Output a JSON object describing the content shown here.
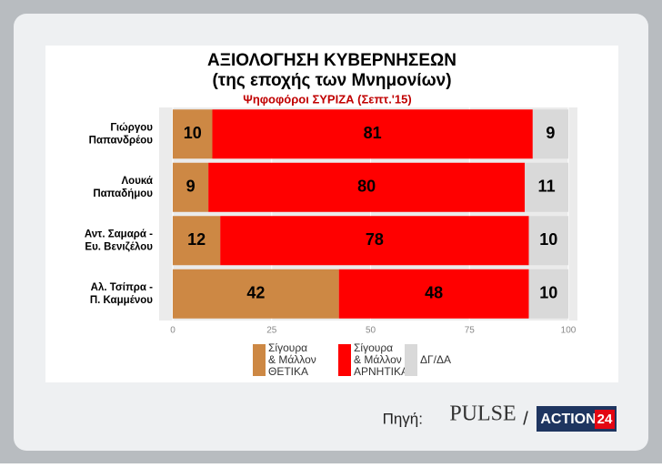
{
  "chart_data": {
    "type": "stacked-barh",
    "title": [
      "ΑΞΙΟΛΟΓΗΣΗ ΚΥΒΕΡΝΗΣΕΩΝ",
      "(της εποχής των Μνημονίων)"
    ],
    "subtitle": "Ψηφοφόροι ΣΥΡΙΖΑ (Σεπτ.'15)",
    "categories": [
      [
        "Γιώργου",
        "Παπανδρέου"
      ],
      [
        "Λουκά",
        "Παπαδήμου"
      ],
      [
        "Αντ. Σαμαρά -",
        "Ευ. Βενιζέλου"
      ],
      [
        "Αλ. Τσίπρα -",
        "Π. Καμμένου"
      ]
    ],
    "series": [
      {
        "name": [
          "Σίγουρα",
          "& Μάλλον",
          "ΘΕΤΙΚΑ"
        ],
        "color": "#cd8844",
        "values": [
          10,
          9,
          12,
          42
        ]
      },
      {
        "name": [
          "Σίγουρα",
          "& Μάλλον",
          "ΑΡΝΗΤΙΚΑ"
        ],
        "color": "#ff0000",
        "values": [
          81,
          80,
          78,
          48
        ]
      },
      {
        "name": [
          "ΔΓ/ΔΑ"
        ],
        "color": "#d9d9d9",
        "values": [
          9,
          11,
          10,
          10
        ]
      }
    ],
    "xlim": [
      0,
      100
    ],
    "xticks": [
      0,
      25,
      50,
      75,
      100
    ],
    "grid": true
  },
  "source": {
    "label": "Πηγή:",
    "separator": "/",
    "logos": [
      "PULSE",
      "ACTION",
      "24"
    ]
  }
}
